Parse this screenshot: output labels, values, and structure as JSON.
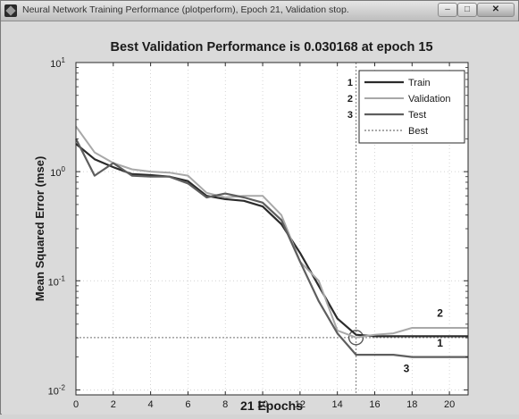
{
  "window": {
    "title": "Neural Network Training Performance (plotperform), Epoch 21, Validation stop.",
    "minimize_symbol": "–",
    "maximize_symbol": "□",
    "close_symbol": "✕"
  },
  "chart_data": {
    "type": "line",
    "title": "Best Validation Performance is 0.030168 at epoch 15",
    "xlabel": "21 Epochs",
    "ylabel": "Mean Squared Error  (mse)",
    "xlim": [
      0,
      21
    ],
    "ylim": [
      0.009,
      10
    ],
    "yscale": "log",
    "grid": true,
    "legend_placement": "top-right",
    "x_ticks": [
      0,
      2,
      4,
      6,
      8,
      10,
      12,
      14,
      16,
      18,
      20
    ],
    "x_tick_labels": [
      "0",
      "2",
      "4",
      "6",
      "8",
      "10",
      "12",
      "14",
      "16",
      "18",
      "20"
    ],
    "y_ticks": [
      0.01,
      0.1,
      1,
      10
    ],
    "y_tick_labels": [
      {
        "base": "10",
        "exp": "-2"
      },
      {
        "base": "10",
        "exp": "-1"
      },
      {
        "base": "10",
        "exp": "0"
      },
      {
        "base": "10",
        "exp": "1"
      }
    ],
    "x": [
      0,
      1,
      2,
      3,
      4,
      5,
      6,
      7,
      8,
      9,
      10,
      11,
      12,
      13,
      14,
      15,
      16,
      17,
      18,
      19,
      20,
      21
    ],
    "series": [
      {
        "name": "Train",
        "color": "#2b2b2b",
        "width": 2.2,
        "values": [
          1.8,
          1.3,
          1.1,
          0.95,
          0.93,
          0.9,
          0.82,
          0.6,
          0.56,
          0.54,
          0.48,
          0.33,
          0.18,
          0.09,
          0.045,
          0.032,
          0.031,
          0.031,
          0.031,
          0.031,
          0.031,
          0.031
        ]
      },
      {
        "name": "Validation",
        "color": "#a8a8a8",
        "width": 2,
        "values": [
          2.6,
          1.5,
          1.2,
          1.05,
          1.0,
          0.98,
          0.92,
          0.64,
          0.58,
          0.6,
          0.6,
          0.4,
          0.15,
          0.1,
          0.035,
          0.030168,
          0.032,
          0.033,
          0.037,
          0.037,
          0.037,
          0.037
        ]
      },
      {
        "name": "Test",
        "color": "#5e5e5e",
        "width": 2.2,
        "values": [
          2.0,
          0.92,
          1.2,
          0.92,
          0.9,
          0.9,
          0.78,
          0.58,
          0.63,
          0.58,
          0.52,
          0.36,
          0.15,
          0.065,
          0.033,
          0.021,
          0.021,
          0.021,
          0.02,
          0.02,
          0.02,
          0.02
        ]
      }
    ],
    "best": {
      "name": "Best",
      "epoch": 15,
      "value": 0.030168,
      "color": "#8c8c8c"
    },
    "legend_marks": [
      "1",
      "2",
      "3"
    ],
    "annotations": [
      {
        "text": "2",
        "x": 19.5,
        "y": 0.047
      },
      {
        "text": "1",
        "x": 19.5,
        "y": 0.025
      },
      {
        "text": "3",
        "x": 17.7,
        "y": 0.0145
      }
    ]
  }
}
